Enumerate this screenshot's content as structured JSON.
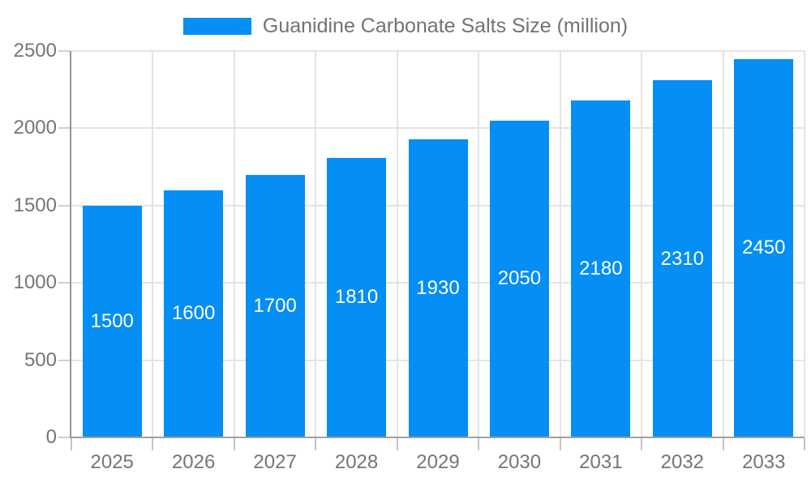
{
  "legend": {
    "label": "Guanidine Carbonate Salts Size (million)"
  },
  "chart_data": {
    "type": "bar",
    "categories": [
      "2025",
      "2026",
      "2027",
      "2028",
      "2029",
      "2030",
      "2031",
      "2032",
      "2033"
    ],
    "values": [
      1500,
      1600,
      1700,
      1810,
      1930,
      2050,
      2180,
      2310,
      2450
    ],
    "series_name": "Guanidine Carbonate Salts Size (million)",
    "title": "",
    "xlabel": "",
    "ylabel": "",
    "ylim": [
      0,
      2500
    ],
    "yticks": [
      0,
      500,
      1000,
      1500,
      2000,
      2500
    ],
    "grid": true,
    "legend_position": "top-center",
    "value_label_position": "inside-center"
  },
  "colors": {
    "bar": "#058ef4",
    "grid": "#e4e4e4",
    "axis": "#999999",
    "tick": "#cccccc",
    "axis_label": "#757575",
    "legend_text": "#737373",
    "value_label": "#ffffff",
    "background": "#ffffff"
  }
}
